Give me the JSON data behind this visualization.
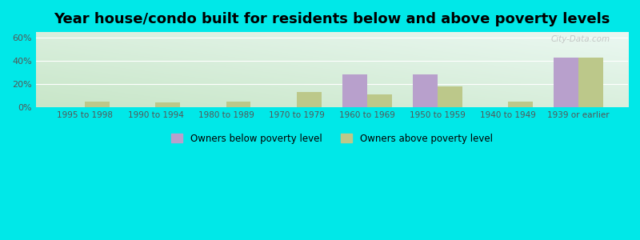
{
  "categories": [
    "1995 to 1998",
    "1990 to 1994",
    "1980 to 1989",
    "1970 to 1979",
    "1960 to 1969",
    "1950 to 1959",
    "1940 to 1949",
    "1939 or earlier"
  ],
  "below_poverty": [
    0,
    0,
    0,
    0,
    28,
    28,
    0,
    43
  ],
  "above_poverty": [
    5,
    4,
    5,
    13,
    11,
    18,
    5,
    43
  ],
  "below_color": "#b8a0cc",
  "above_color": "#bcc88a",
  "title": "Year house/condo built for residents below and above poverty levels",
  "title_fontsize": 13,
  "ylabel_ticks": [
    "0%",
    "20%",
    "40%",
    "60%"
  ],
  "yticks": [
    0,
    20,
    40,
    60
  ],
  "ylim": [
    0,
    65
  ],
  "bar_width": 0.35,
  "legend_below": "Owners below poverty level",
  "legend_above": "Owners above poverty level",
  "outer_bg": "#00e8e8",
  "watermark": "City-Data.com",
  "bg_left_bottom": "#c8e8c0",
  "bg_right_top": "#e8f8f0"
}
